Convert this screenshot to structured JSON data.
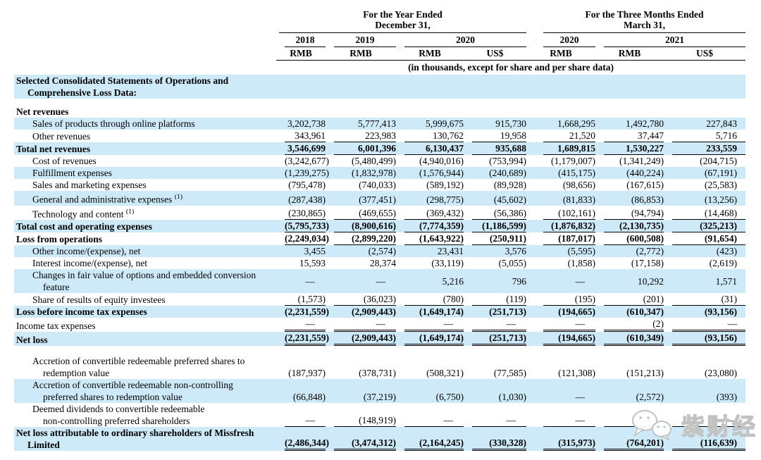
{
  "colors": {
    "stripe_blue": "#cee9f8",
    "rule_black": "#000000",
    "watermark_gray": "#c2c2c2"
  },
  "header": {
    "period1": {
      "line1": "For the Year Ended",
      "line2": "December 31,"
    },
    "period2": {
      "line1": "For the Three Months Ended",
      "line2": "March 31,"
    },
    "years": [
      "2018",
      "2019",
      "2020",
      "2020",
      "2021"
    ],
    "currencies": [
      "RMB",
      "RMB",
      "RMB",
      "US$",
      "RMB",
      "RMB",
      "US$"
    ],
    "note": "(in thousands, except for share and per share data)"
  },
  "watermark": {
    "text": "紫财经",
    "icon": "wechat-bubbles-icon"
  },
  "rows": [
    {
      "name": "section-title",
      "lines": [
        "Selected Consolidated Statements of Operations and",
        "Comprehensive Loss Data:"
      ],
      "bold": true,
      "indent": false,
      "bg": "blue",
      "underline": "none",
      "values": [
        "",
        "",
        "",
        "",
        "",
        "",
        ""
      ]
    },
    {
      "type": "spacer",
      "h": 10
    },
    {
      "name": "net-revenues-heading",
      "lines": [
        "Net revenues"
      ],
      "bold": true,
      "indent": false,
      "bg": "white",
      "underline": "none",
      "values": [
        "",
        "",
        "",
        "",
        "",
        "",
        ""
      ]
    },
    {
      "name": "sales-online-platforms",
      "lines": [
        "Sales of products through online platforms"
      ],
      "bold": false,
      "indent": true,
      "bg": "blue",
      "underline": "none",
      "values": [
        "3,202,738",
        "5,777,413",
        "5,999,675",
        "915,730",
        "1,668,295",
        "1,492,780",
        "227,843"
      ]
    },
    {
      "name": "other-revenues",
      "lines": [
        "Other revenues"
      ],
      "bold": false,
      "indent": true,
      "bg": "white",
      "underline": "single",
      "values": [
        "343,961",
        "223,983",
        "130,762",
        "19,958",
        "21,520",
        "37,447",
        "5,716"
      ]
    },
    {
      "name": "total-net-revenues",
      "lines": [
        "Total net revenues"
      ],
      "bold": true,
      "indent": false,
      "bg": "blue",
      "underline": "single",
      "values": [
        "3,546,699",
        "6,001,396",
        "6,130,437",
        "935,688",
        "1,689,815",
        "1,530,227",
        "233,559"
      ]
    },
    {
      "name": "cost-of-revenues",
      "lines": [
        "Cost of revenues"
      ],
      "bold": false,
      "indent": true,
      "bg": "white",
      "underline": "none",
      "values": [
        "(3,242,677)",
        "(5,480,499)",
        "(4,940,016)",
        "(753,994)",
        "(1,179,007)",
        "(1,341,249)",
        "(204,715)"
      ]
    },
    {
      "name": "fulfillment-expenses",
      "lines": [
        "Fulfillment expenses"
      ],
      "bold": false,
      "indent": true,
      "bg": "blue",
      "underline": "none",
      "values": [
        "(1,239,275)",
        "(1,832,978)",
        "(1,576,944)",
        "(240,689)",
        "(415,175)",
        "(440,224)",
        "(67,191)"
      ]
    },
    {
      "name": "sales-marketing-expenses",
      "lines": [
        "Sales and marketing expenses"
      ],
      "bold": false,
      "indent": true,
      "bg": "white",
      "underline": "none",
      "values": [
        "(795,478)",
        "(740,033)",
        "(589,192)",
        "(89,928)",
        "(98,656)",
        "(167,615)",
        "(25,583)"
      ]
    },
    {
      "name": "general-admin-expenses",
      "lines": [
        "General and administrative expenses"
      ],
      "sup": "(1)",
      "bold": false,
      "indent": true,
      "bg": "blue",
      "underline": "none",
      "values": [
        "(287,438)",
        "(377,451)",
        "(298,775)",
        "(45,602)",
        "(81,833)",
        "(86,853)",
        "(13,256)"
      ]
    },
    {
      "name": "technology-and-content",
      "lines": [
        "Technology and content"
      ],
      "sup": "(1)",
      "bold": false,
      "indent": true,
      "bg": "white",
      "underline": "single",
      "values": [
        "(230,865)",
        "(469,655)",
        "(369,432)",
        "(56,386)",
        "(102,161)",
        "(94,794)",
        "(14,468)"
      ]
    },
    {
      "name": "total-cost-operating-expenses",
      "lines": [
        "Total cost and operating expenses"
      ],
      "bold": true,
      "indent": false,
      "bg": "blue",
      "underline": "single",
      "values": [
        "(5,795,733)",
        "(8,900,616)",
        "(7,774,359)",
        "(1,186,599)",
        "(1,876,832)",
        "(2,130,735)",
        "(325,213)"
      ]
    },
    {
      "name": "loss-from-operations",
      "lines": [
        "Loss from operations"
      ],
      "bold": true,
      "indent": false,
      "bg": "white",
      "underline": "single",
      "values": [
        "(2,249,034)",
        "(2,899,220)",
        "(1,643,922)",
        "(250,911)",
        "(187,017)",
        "(600,508)",
        "(91,654)"
      ]
    },
    {
      "name": "other-income-expense-net",
      "lines": [
        "Other income/(expense), net"
      ],
      "bold": false,
      "indent": true,
      "bg": "blue",
      "underline": "none",
      "values": [
        "3,455",
        "(2,574)",
        "23,431",
        "3,576",
        "(5,595)",
        "(2,772)",
        "(423)"
      ]
    },
    {
      "name": "interest-income-expense-net",
      "lines": [
        "Interest income/(expense), net"
      ],
      "bold": false,
      "indent": true,
      "bg": "white",
      "underline": "none",
      "values": [
        "15,593",
        "28,374",
        "(33,119)",
        "(5,055)",
        "(1,858)",
        "(17,158)",
        "(2,619)"
      ]
    },
    {
      "name": "changes-fair-value-options",
      "lines": [
        "Changes in fair value of options and embedded conversion",
        "feature"
      ],
      "bold": false,
      "indent": true,
      "bg": "blue",
      "underline": "none",
      "valign": "middle",
      "values": [
        "—",
        "—",
        "5,216",
        "796",
        "—",
        "10,292",
        "1,571"
      ]
    },
    {
      "name": "share-results-equity-investees",
      "lines": [
        "Share of results of equity investees"
      ],
      "bold": false,
      "indent": true,
      "bg": "white",
      "underline": "single",
      "values": [
        "(1,573)",
        "(36,023)",
        "(780)",
        "(119)",
        "(195)",
        "(201)",
        "(31)"
      ]
    },
    {
      "name": "loss-before-income-tax",
      "lines": [
        "Loss before income tax expenses"
      ],
      "bold": true,
      "indent": false,
      "bg": "blue",
      "underline": "none",
      "values": [
        "(2,231,559)",
        "(2,909,443)",
        "(1,649,174)",
        "(251,713)",
        "(194,665)",
        "(610,347)",
        "(93,156)"
      ]
    },
    {
      "name": "income-tax-expenses",
      "lines": [
        "Income tax expenses"
      ],
      "bold": false,
      "indent": false,
      "bg": "white",
      "underline": "double",
      "values": [
        "—",
        "—",
        "—",
        "—",
        "—",
        "(2)",
        "—"
      ]
    },
    {
      "name": "net-loss",
      "lines": [
        "Net loss"
      ],
      "bold": true,
      "indent": false,
      "bg": "blue",
      "underline": "double",
      "values": [
        "(2,231,559)",
        "(2,909,443)",
        "(1,649,174)",
        "(251,713)",
        "(194,665)",
        "(610,349)",
        "(93,156)"
      ]
    },
    {
      "type": "spacer",
      "h": 13
    },
    {
      "name": "accretion-preferred-shares",
      "lines": [
        "Accretion of convertible redeemable preferred shares to",
        "redemption value"
      ],
      "bold": false,
      "indent": true,
      "bg": "white",
      "underline": "none",
      "values": [
        "(187,937)",
        "(378,731)",
        "(508,321)",
        "(77,585)",
        "(121,308)",
        "(151,213)",
        "(23,080)"
      ]
    },
    {
      "name": "accretion-noncontrolling-preferred",
      "lines": [
        "Accretion of convertible redeemable non-controlling",
        "preferred shares to redemption value"
      ],
      "bold": false,
      "indent": true,
      "bg": "blue",
      "underline": "none",
      "values": [
        "(66,848)",
        "(37,219)",
        "(6,750)",
        "(1,030)",
        "—",
        "(2,572)",
        "(393)"
      ]
    },
    {
      "name": "deemed-dividends",
      "lines": [
        "Deemed dividends to convertible redeemable",
        "non-controlling preferred shareholders"
      ],
      "bold": false,
      "indent": true,
      "bg": "white",
      "underline": "single",
      "values": [
        "—",
        "(148,919)",
        "—",
        "—",
        "—",
        "—",
        "—"
      ]
    },
    {
      "name": "net-loss-attributable-ordinary",
      "lines": [
        "Net loss attributable to ordinary shareholders of Missfresh",
        "Limited"
      ],
      "bold": true,
      "indent": false,
      "bg": "blue",
      "underline": "double",
      "values": [
        "(2,486,344)",
        "(3,474,312)",
        "(2,164,245)",
        "(330,328)",
        "(315,973)",
        "(764,201)",
        "(116,639)"
      ]
    }
  ]
}
